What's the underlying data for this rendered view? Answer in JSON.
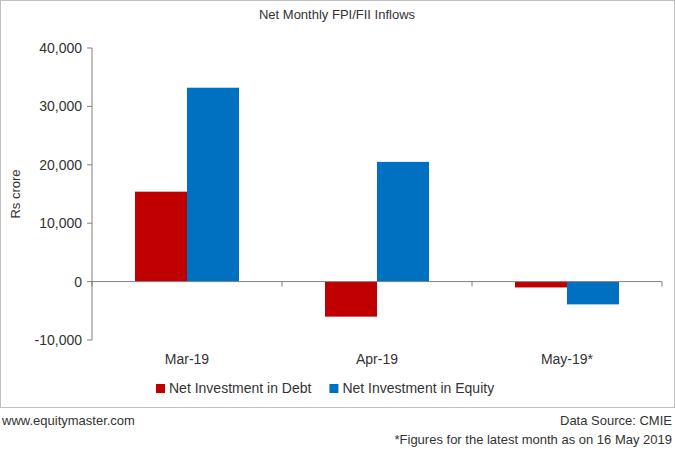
{
  "chart_data": {
    "type": "bar",
    "title": "Net Monthly FPI/FII Inflows",
    "y_label": "Rs crore",
    "categories": [
      "Mar-19",
      "Apr-19",
      "May-19*"
    ],
    "series": [
      {
        "name": "Net Investment in Debt",
        "color": "#c00000",
        "values": [
          15400,
          -6000,
          -1000
        ]
      },
      {
        "name": "Net Investment in Equity",
        "color": "#0070c0",
        "values": [
          33200,
          20500,
          -3900
        ]
      }
    ],
    "ylim": [
      -10000,
      40000
    ],
    "yticks": [
      {
        "value": -10000,
        "label": "-10,000"
      },
      0,
      {
        "value": 10000,
        "label": "10,000"
      },
      {
        "value": 20000,
        "label": "20,000"
      },
      {
        "value": 30000,
        "label": "30,000"
      },
      {
        "value": 40000,
        "label": "40,000"
      }
    ],
    "grid": false,
    "legend": "bottom",
    "website": "www.equitymaster.com",
    "source": "Data Source: CMIE",
    "note": "*Figures for the latest month as on 16 May 2019"
  }
}
